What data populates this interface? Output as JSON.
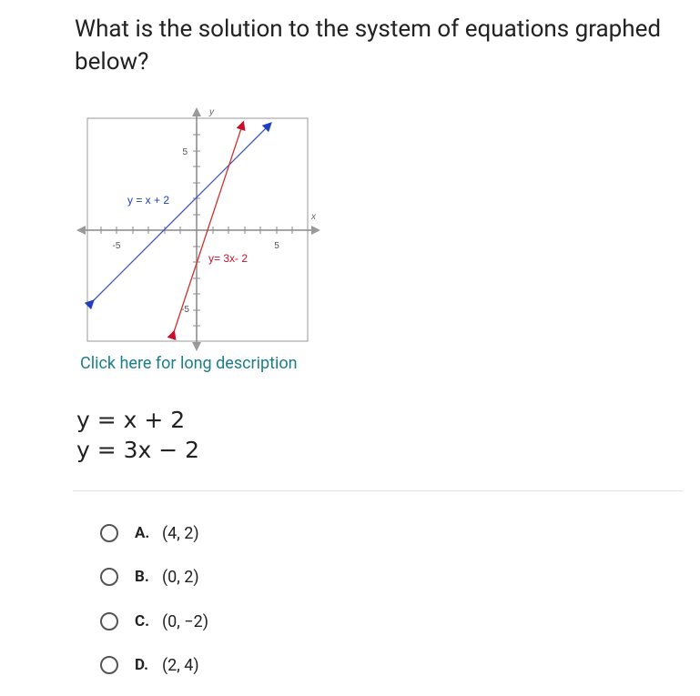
{
  "question": "What is the solution to the system of equations graphed below?",
  "graph": {
    "y_axis_label": "y",
    "x_axis_label": "x",
    "x_tick_labels": [
      "-5",
      "5"
    ],
    "y_tick_labels": [
      "5",
      "-5"
    ],
    "line_labels": [
      "y = x + 2",
      "y= 3x- 2"
    ]
  },
  "link": "Click here for long description",
  "equations": [
    "y = x + 2",
    "y = 3x − 2"
  ],
  "choices": [
    {
      "letter": "A.",
      "text": "(4, 2)"
    },
    {
      "letter": "B.",
      "text": "(0, 2)"
    },
    {
      "letter": "C.",
      "text": "(0, −2)"
    },
    {
      "letter": "D.",
      "text": "(2, 4)"
    }
  ]
}
